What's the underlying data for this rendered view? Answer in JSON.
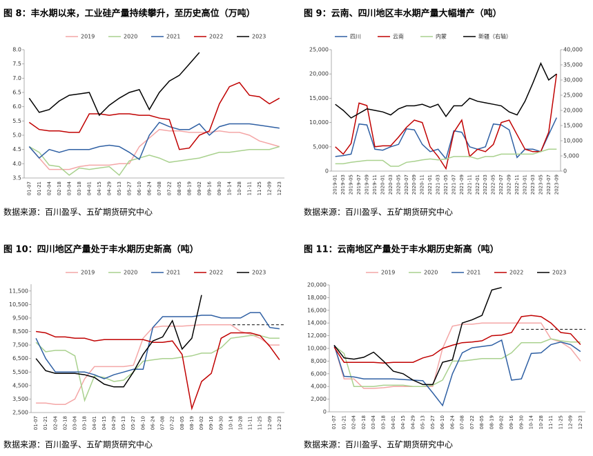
{
  "chart_data": [
    {
      "type": "line",
      "title": "图 8：丰水期以来，工业硅产量持续攀升，至历史高位（万吨）",
      "source": "数据来源：百川盈孚、五矿期货研究中心",
      "categories": [
        "01-07",
        "01-21",
        "02-04",
        "02-18",
        "03-04",
        "03-18",
        "04-01",
        "04-15",
        "04-29",
        "05-13",
        "05-27",
        "06-10",
        "06-24",
        "07-08",
        "07-22",
        "08-05",
        "08-19",
        "09-02",
        "09-16",
        "09-30",
        "10-14",
        "10-28",
        "11-11",
        "11-25",
        "12-09",
        "12-23"
      ],
      "ylim": [
        3.5,
        8.0
      ],
      "yticks": [
        3.5,
        {
          "value": 4,
          "label": "4.0"
        },
        4.5,
        {
          "value": 5,
          "label": "5.0"
        },
        5.5,
        {
          "value": 6,
          "label": "6.0"
        },
        6.5,
        {
          "value": 7,
          "label": "7.0"
        },
        7.5,
        {
          "value": 8,
          "label": "8.0"
        }
      ],
      "series": [
        {
          "name": "2019",
          "color": "#f4a6a6",
          "values": [
            4.6,
            4.2,
            3.8,
            3.8,
            3.8,
            3.9,
            3.95,
            3.95,
            3.95,
            4.0,
            4.0,
            4.6,
            4.9,
            5.2,
            5.15,
            5.15,
            5.1,
            5.1,
            5.1,
            5.15,
            5.1,
            5.1,
            5.0,
            4.8,
            4.7,
            4.6
          ]
        },
        {
          "name": "2020",
          "color": "#a9d18e",
          "values": [
            4.6,
            4.4,
            3.95,
            3.9,
            3.6,
            3.85,
            3.8,
            3.85,
            3.9,
            3.6,
            4.1,
            4.2,
            4.3,
            4.2,
            4.05,
            4.1,
            4.15,
            4.2,
            4.3,
            4.4,
            4.4,
            4.45,
            4.5,
            4.5,
            4.5,
            4.6
          ]
        },
        {
          "name": "2021",
          "color": "#2e5fa3",
          "values": [
            4.6,
            4.2,
            4.5,
            4.4,
            4.5,
            4.5,
            4.5,
            4.6,
            4.65,
            4.6,
            4.4,
            4.15,
            5.0,
            5.45,
            5.3,
            5.2,
            5.2,
            5.4,
            5.0,
            5.3,
            5.4,
            5.4,
            5.4,
            5.35,
            5.3,
            5.25
          ]
        },
        {
          "name": "2022",
          "color": "#c00000",
          "values": [
            5.45,
            5.2,
            5.15,
            5.15,
            5.1,
            5.1,
            5.75,
            5.75,
            5.7,
            5.75,
            5.75,
            5.7,
            5.7,
            5.6,
            5.55,
            4.5,
            4.55,
            5.0,
            5.15,
            6.1,
            6.7,
            6.85,
            6.4,
            6.35,
            6.1,
            6.3
          ]
        },
        {
          "name": "2023",
          "color": "#000000",
          "values": [
            6.3,
            5.8,
            5.9,
            6.2,
            6.4,
            6.45,
            6.5,
            5.7,
            6.05,
            6.3,
            6.5,
            6.6,
            5.9,
            6.5,
            6.9,
            7.1,
            7.5,
            7.9,
            null,
            null,
            null,
            null,
            null,
            null,
            null,
            null
          ]
        }
      ]
    },
    {
      "type": "line",
      "title": "图 9：云南、四川地区丰水期产量大幅增产（吨）",
      "source": "数据来源：百川盈孚、五矿期货研究中心",
      "categories": [
        "2019-01",
        "2019-03",
        "2019-05",
        "2019-07",
        "2019-09",
        "2019-11",
        "2020-01",
        "2020-03",
        "2020-05",
        "2020-07",
        "2020-09",
        "2020-11",
        "2021-01",
        "2021-03",
        "2021-05",
        "2021-07",
        "2021-09",
        "2021-11",
        "2022-01",
        "2022-03",
        "2022-05",
        "2022-07",
        "2022-09",
        "2022-11",
        "2023-01",
        "2023-03",
        "2023-05",
        "2023-07",
        "2023-09"
      ],
      "ylim": [
        0,
        25000
      ],
      "yticks": [
        0,
        {
          "value": 5000,
          "label": "5,000"
        },
        {
          "value": 10000,
          "label": "10,000"
        },
        {
          "value": 15000,
          "label": "15,000"
        },
        {
          "value": 20000,
          "label": "20,000"
        },
        {
          "value": 25000,
          "label": "25,000"
        }
      ],
      "y2lim": [
        0,
        40000
      ],
      "y2ticks": [
        0,
        {
          "value": 5000,
          "label": "5,000"
        },
        {
          "value": 10000,
          "label": "10,000"
        },
        {
          "value": 15000,
          "label": "15,000"
        },
        {
          "value": 20000,
          "label": "20,000"
        },
        {
          "value": 25000,
          "label": "25,000"
        },
        {
          "value": 30000,
          "label": "30,000"
        },
        {
          "value": 35000,
          "label": "35,000"
        },
        {
          "value": 40000,
          "label": "40,000"
        }
      ],
      "series": [
        {
          "name": "四川",
          "color": "#2e5fa3",
          "values": [
            3000,
            3200,
            3500,
            9700,
            9500,
            4500,
            4300,
            5000,
            5500,
            8700,
            8500,
            5500,
            4000,
            4500,
            2500,
            8300,
            8000,
            5000,
            4500,
            5000,
            9700,
            9500,
            8500,
            2800,
            4500,
            4500,
            4000,
            7500,
            11000
          ]
        },
        {
          "name": "云南",
          "color": "#c00000",
          "values": [
            5000,
            3500,
            5700,
            14000,
            13500,
            5000,
            5200,
            5200,
            7000,
            9000,
            10500,
            10000,
            5000,
            3000,
            500,
            8000,
            10500,
            3000,
            4500,
            4000,
            5500,
            10000,
            10500,
            7500,
            4500,
            4000,
            4000,
            8000,
            20000
          ]
        },
        {
          "name": "内蒙",
          "color": "#a9d18e",
          "values": [
            1500,
            1500,
            1800,
            2000,
            2200,
            2200,
            2200,
            1000,
            1000,
            1800,
            2000,
            2300,
            2500,
            2300,
            2500,
            3000,
            3000,
            3000,
            2500,
            3000,
            3000,
            3500,
            3500,
            3500,
            3500,
            3500,
            4000,
            4500,
            4500
          ]
        },
        {
          "name": "新疆（右轴）",
          "color": "#000000",
          "axis": "y2",
          "values": [
            22000,
            20000,
            17500,
            19000,
            20500,
            20000,
            19500,
            18500,
            20500,
            21500,
            21500,
            22000,
            21000,
            22000,
            18000,
            21500,
            21500,
            24000,
            23000,
            22500,
            22000,
            21500,
            19500,
            18500,
            23000,
            29000,
            35500,
            30000,
            32000
          ]
        }
      ]
    },
    {
      "type": "line",
      "title": "图 10：四川地区产量处于丰水期历史新高（吨）",
      "source": "数据来源：百川盈孚、五矿期货研究中心",
      "categories": [
        "01-07",
        "01-21",
        "02-04",
        "02-18",
        "03-04",
        "03-18",
        "04-01",
        "04-15",
        "04-29",
        "05-13",
        "05-27",
        "06-10",
        "06-24",
        "07-08",
        "07-22",
        "08-05",
        "08-19",
        "09-02",
        "09-16",
        "09-30",
        "10-14",
        "10-28",
        "11-11",
        "11-25",
        "12-09",
        "12-23"
      ],
      "ylim": [
        2500,
        12000
      ],
      "yticks": [
        {
          "value": 2500,
          "label": "2,500"
        },
        {
          "value": 3500,
          "label": "3,500"
        },
        {
          "value": 4500,
          "label": "4,500"
        },
        {
          "value": 5500,
          "label": "5,500"
        },
        {
          "value": 6500,
          "label": "6,500"
        },
        {
          "value": 7500,
          "label": "7,500"
        },
        {
          "value": 8500,
          "label": "8,500"
        },
        {
          "value": 9500,
          "label": "9,500"
        },
        {
          "value": 10500,
          "label": "10,500"
        },
        {
          "value": 11500,
          "label": "11,500"
        }
      ],
      "reference_line": 9000,
      "series": [
        {
          "name": "2019",
          "color": "#f4a6a6",
          "values": [
            3200,
            3200,
            3100,
            3100,
            3500,
            5000,
            5900,
            5900,
            5900,
            5900,
            6000,
            8000,
            8800,
            8900,
            8900,
            8900,
            8950,
            9000,
            9000,
            9000,
            9000,
            8500,
            8300,
            8000,
            7500,
            7500
          ]
        },
        {
          "name": "2020",
          "color": "#a9d18e",
          "values": [
            7700,
            7000,
            7100,
            7100,
            6700,
            3400,
            5200,
            5100,
            4800,
            4900,
            5500,
            6300,
            6400,
            6500,
            6500,
            6600,
            6700,
            6900,
            6900,
            7300,
            8000,
            8100,
            8200,
            8200,
            8000,
            8000
          ]
        },
        {
          "name": "2021",
          "color": "#2e5fa3",
          "values": [
            8000,
            6500,
            5500,
            5500,
            5500,
            5500,
            5300,
            5000,
            5300,
            5500,
            5700,
            5700,
            8800,
            9600,
            9600,
            9600,
            9600,
            9700,
            9700,
            9500,
            9500,
            9500,
            9900,
            9900,
            8800,
            8700
          ]
        },
        {
          "name": "2022",
          "color": "#c00000",
          "values": [
            8500,
            8400,
            8100,
            8100,
            8000,
            8000,
            7800,
            7900,
            7900,
            7900,
            7900,
            7900,
            7700,
            7700,
            7800,
            6800,
            2800,
            4800,
            5400,
            8000,
            8400,
            8400,
            8400,
            8200,
            7400,
            6400
          ]
        },
        {
          "name": "2023",
          "color": "#000000",
          "values": [
            6500,
            5600,
            5400,
            5400,
            5400,
            5300,
            5100,
            4600,
            4400,
            4400,
            5500,
            6800,
            7800,
            8100,
            9300,
            7200,
            8000,
            11200,
            null,
            null,
            null,
            null,
            null,
            null,
            null,
            null
          ]
        }
      ]
    },
    {
      "type": "line",
      "title": "图 11：云南地区产量处于丰水期历史新高（吨）",
      "source": "数据来源：百川盈孚、五矿期货研究中心",
      "categories": [
        "01-07",
        "01-21",
        "02-04",
        "02-18",
        "03-04",
        "03-18",
        "04-01",
        "04-15",
        "04-29",
        "05-13",
        "05-27",
        "06-10",
        "06-24",
        "07-08",
        "07-22",
        "08-05",
        "08-19",
        "09-02",
        "09-16",
        "09-30",
        "10-14",
        "10-28",
        "11-11",
        "11-25",
        "12-09",
        "12-23"
      ],
      "ylim": [
        0,
        20000
      ],
      "yticks": [
        0,
        {
          "value": 2000,
          "label": "2,000"
        },
        {
          "value": 4000,
          "label": "4,000"
        },
        {
          "value": 6000,
          "label": "6,000"
        },
        {
          "value": 8000,
          "label": "8,000"
        },
        {
          "value": 10000,
          "label": "10,000"
        },
        {
          "value": 12000,
          "label": "12,000"
        },
        {
          "value": 14000,
          "label": "14,000"
        },
        {
          "value": 16000,
          "label": "16,000"
        },
        {
          "value": 18000,
          "label": "18,000"
        },
        {
          "value": 20000,
          "label": "20,000"
        }
      ],
      "reference_line": 13000,
      "series": [
        {
          "name": "2019",
          "color": "#f4a6a6",
          "values": [
            10500,
            5200,
            5200,
            3700,
            3700,
            3800,
            4000,
            4000,
            4000,
            4000,
            4000,
            10000,
            13500,
            13800,
            13800,
            14000,
            14000,
            14000,
            14000,
            14000,
            14000,
            14000,
            11500,
            11000,
            10000,
            8000
          ]
        },
        {
          "name": "2020",
          "color": "#a9d18e",
          "values": [
            10400,
            9200,
            4000,
            4000,
            4000,
            4200,
            4200,
            4200,
            4000,
            4000,
            4200,
            5000,
            8000,
            8000,
            8200,
            8400,
            8400,
            8400,
            9300,
            10900,
            10900,
            10900,
            11500,
            11200,
            11000,
            11000
          ]
        },
        {
          "name": "2021",
          "color": "#2e5fa3",
          "values": [
            10500,
            5600,
            5500,
            5200,
            5200,
            5200,
            5200,
            5100,
            5000,
            4900,
            3000,
            1000,
            6000,
            9300,
            10100,
            10300,
            10500,
            11300,
            5000,
            5200,
            9200,
            9300,
            10600,
            11000,
            10600,
            9500
          ]
        },
        {
          "name": "2022",
          "color": "#c00000",
          "values": [
            10200,
            7800,
            7800,
            7800,
            7800,
            7700,
            7800,
            7800,
            7800,
            8500,
            8900,
            10000,
            10500,
            10900,
            11000,
            11200,
            12000,
            12100,
            12500,
            15000,
            15200,
            15000,
            14000,
            12500,
            12300,
            10600
          ]
        },
        {
          "name": "2023",
          "color": "#000000",
          "values": [
            10500,
            8500,
            8300,
            8600,
            9400,
            8000,
            6400,
            6000,
            5000,
            4300,
            4300,
            7800,
            8200,
            14000,
            14500,
            15200,
            19200,
            19600,
            null,
            null,
            null,
            null,
            null,
            null,
            null,
            null
          ]
        }
      ]
    }
  ]
}
